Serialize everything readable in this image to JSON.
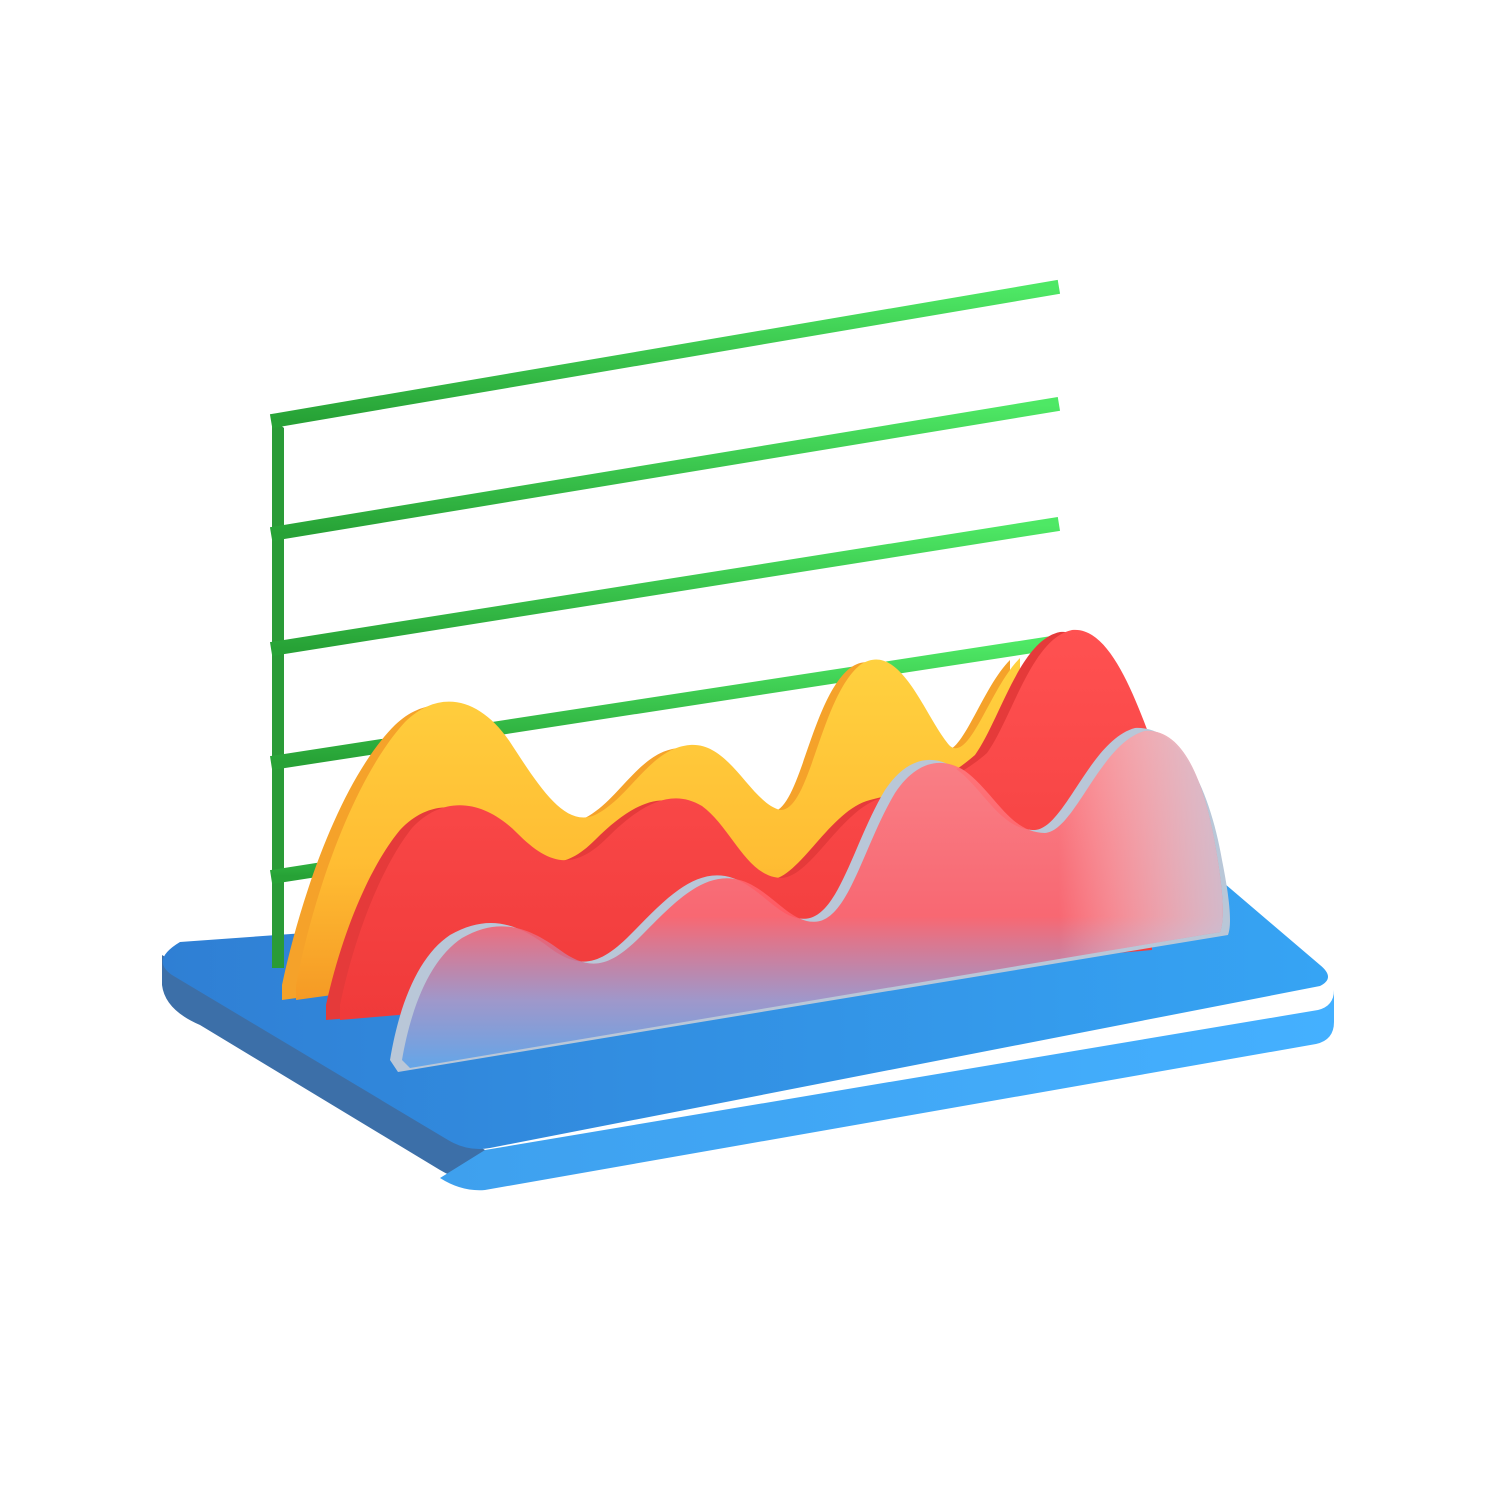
{
  "illustration": {
    "subject": "3d-area-chart-icon",
    "colors": {
      "background": "#ffffff",
      "grid_light": "#4ee865",
      "grid_dark": "#2fa63c",
      "base_top": "#2f8fe6",
      "base_front": "#3aa6f2",
      "base_side": "#3d6fa6",
      "wave_yellow": "#ffc93a",
      "wave_orange": "#f7a52c",
      "wave_red": "#ff4d4d",
      "wave_glass": "#ff6f78",
      "glass_edge": "#b9c7d8"
    }
  }
}
